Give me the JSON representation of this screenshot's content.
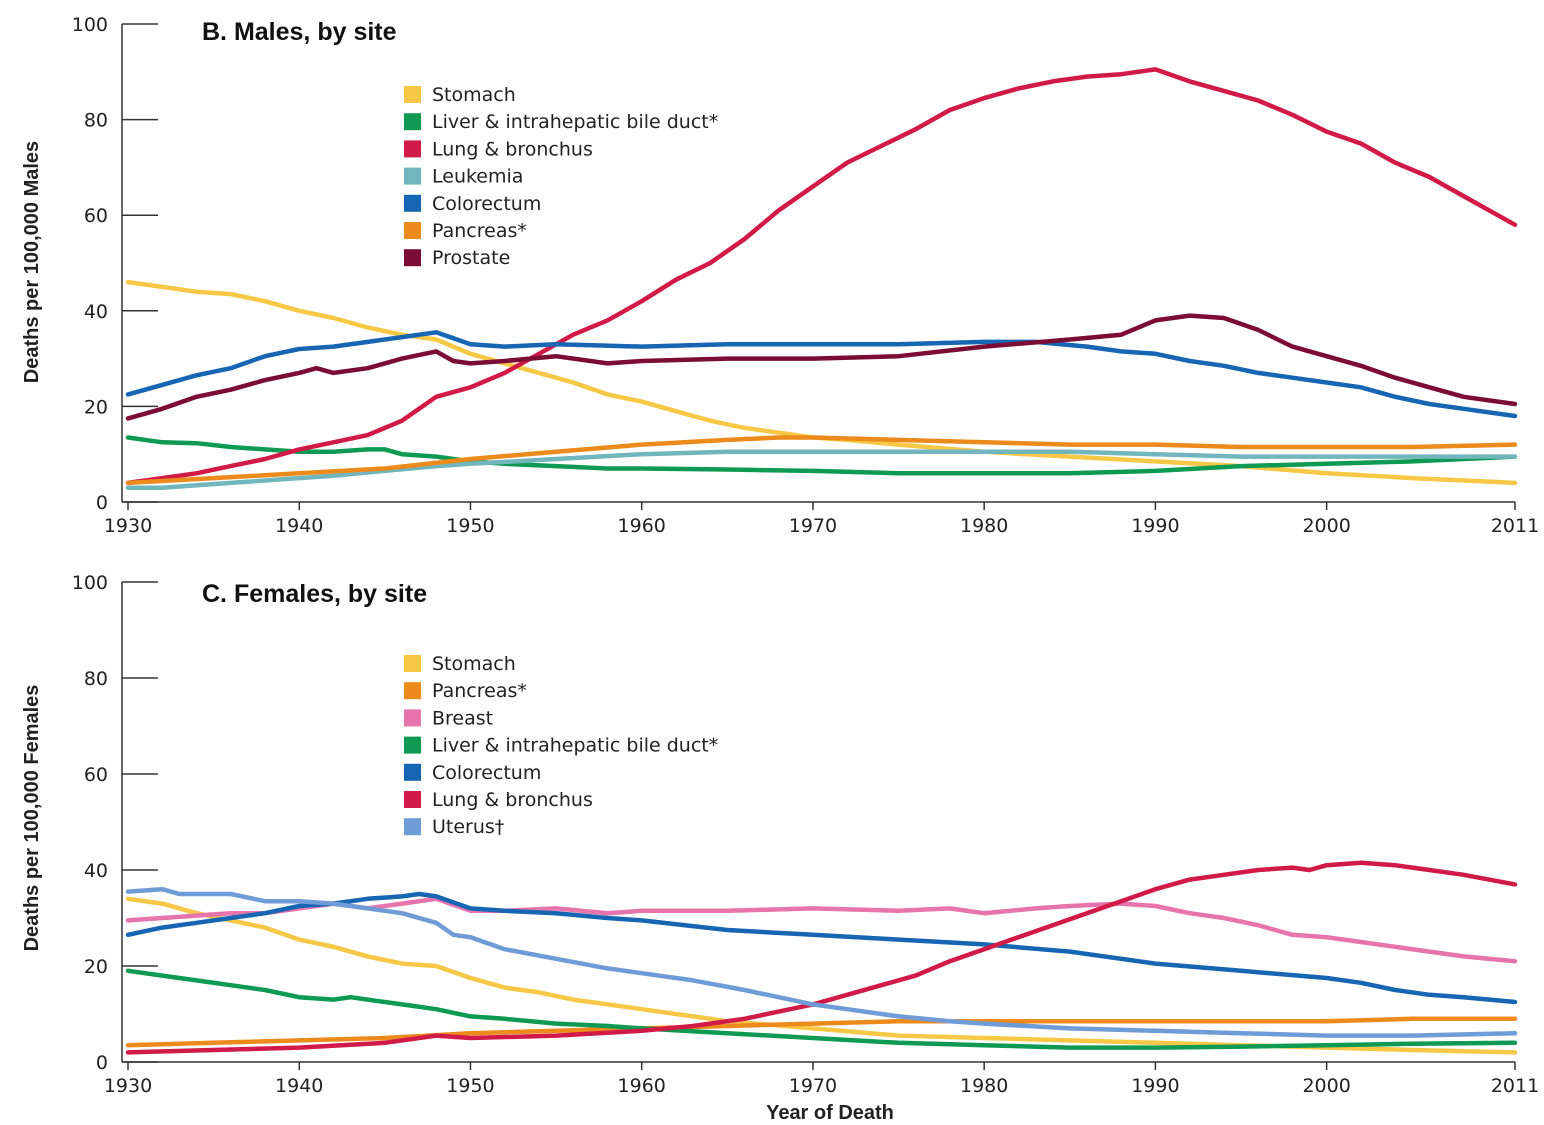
{
  "xlabel": "Year of Death",
  "chart_data": [
    {
      "type": "line",
      "title": "B. Males, by site",
      "ylabel": "Deaths per 100,000 Males",
      "xlabel": "Year of Death",
      "xlim": [
        1930,
        2011
      ],
      "ylim": [
        0,
        100
      ],
      "xticks": [
        "1930",
        "1940",
        "1950",
        "1960",
        "1970",
        "1980",
        "1990",
        "2000",
        "2011"
      ],
      "yticks": [
        "0",
        "20",
        "40",
        "60",
        "80",
        "100"
      ],
      "legend_position": "upper-left",
      "series": [
        {
          "name": "Stomach",
          "color": "#f6c846",
          "x": [
            1930,
            1932,
            1934,
            1936,
            1938,
            1940,
            1942,
            1944,
            1946,
            1948,
            1950,
            1952,
            1954,
            1956,
            1958,
            1960,
            1962,
            1964,
            1966,
            1968,
            1970,
            1972,
            1975,
            1980,
            1985,
            1990,
            1995,
            2000,
            2005,
            2011
          ],
          "y": [
            46,
            45,
            44,
            43.5,
            42,
            40,
            38.5,
            36.5,
            35,
            34,
            31,
            29,
            27,
            25,
            22.5,
            21,
            19,
            17,
            15.5,
            14.5,
            13.5,
            13,
            12,
            10.5,
            9.5,
            8.5,
            7.5,
            6,
            5,
            4
          ]
        },
        {
          "name": "Liver & intrahepatic bile duct*",
          "color": "#0e9a52",
          "x": [
            1930,
            1932,
            1934,
            1936,
            1938,
            1940,
            1942,
            1944,
            1945,
            1946,
            1948,
            1950,
            1952,
            1955,
            1958,
            1960,
            1965,
            1970,
            1975,
            1980,
            1985,
            1990,
            1995,
            2000,
            2005,
            2011
          ],
          "y": [
            13.5,
            12.5,
            12.3,
            11.5,
            11,
            10.5,
            10.5,
            11,
            11,
            10,
            9.5,
            8.5,
            8,
            7.5,
            7,
            7,
            6.8,
            6.5,
            6,
            6,
            6,
            6.5,
            7.5,
            8,
            8.5,
            9.5
          ]
        },
        {
          "name": "Lung & bronchus",
          "color": "#d11a48",
          "x": [
            1930,
            1932,
            1934,
            1936,
            1938,
            1940,
            1942,
            1944,
            1946,
            1948,
            1950,
            1952,
            1954,
            1956,
            1958,
            1960,
            1962,
            1964,
            1966,
            1968,
            1970,
            1972,
            1974,
            1976,
            1978,
            1980,
            1982,
            1984,
            1986,
            1988,
            1990,
            1992,
            1994,
            1996,
            1998,
            2000,
            2002,
            2004,
            2006,
            2008,
            2011
          ],
          "y": [
            4,
            5,
            6,
            7.5,
            9,
            11,
            12.5,
            14,
            17,
            22,
            24,
            27,
            31,
            35,
            38,
            42,
            46.5,
            50,
            55,
            61,
            66,
            71,
            74.5,
            78,
            82,
            84.5,
            86.5,
            88,
            89,
            89.5,
            90.5,
            88,
            86,
            84,
            81,
            77.5,
            75,
            71,
            68,
            64,
            58
          ]
        },
        {
          "name": "Leukemia",
          "color": "#71b6bc",
          "x": [
            1930,
            1932,
            1934,
            1936,
            1938,
            1940,
            1942,
            1945,
            1948,
            1950,
            1955,
            1960,
            1965,
            1968,
            1970,
            1975,
            1980,
            1985,
            1990,
            1995,
            2000,
            2005,
            2011
          ],
          "y": [
            3,
            3,
            3.5,
            4,
            4.5,
            5,
            5.5,
            6.5,
            7.5,
            8,
            9,
            10,
            10.5,
            10.5,
            10.5,
            10.5,
            10.5,
            10.5,
            10,
            9.5,
            9.5,
            9.5,
            9.5
          ]
        },
        {
          "name": "Colorectum",
          "color": "#1766b3",
          "x": [
            1930,
            1932,
            1934,
            1936,
            1938,
            1940,
            1942,
            1944,
            1946,
            1948,
            1950,
            1952,
            1955,
            1960,
            1965,
            1970,
            1975,
            1980,
            1983,
            1986,
            1988,
            1990,
            1992,
            1994,
            1996,
            1998,
            2000,
            2002,
            2004,
            2006,
            2008,
            2011
          ],
          "y": [
            22.5,
            24.5,
            26.5,
            28,
            30.5,
            32,
            32.5,
            33.5,
            34.5,
            35.5,
            33,
            32.5,
            33,
            32.5,
            33,
            33,
            33,
            33.5,
            33.5,
            32.5,
            31.5,
            31,
            29.5,
            28.5,
            27,
            26,
            25,
            24,
            22,
            20.5,
            19.5,
            18
          ]
        },
        {
          "name": "Pancreas*",
          "color": "#ec8a1c",
          "x": [
            1930,
            1935,
            1940,
            1945,
            1950,
            1955,
            1960,
            1965,
            1968,
            1970,
            1975,
            1980,
            1985,
            1990,
            1995,
            2000,
            2005,
            2011
          ],
          "y": [
            4,
            5,
            6,
            7,
            9,
            10.5,
            12,
            13,
            13.5,
            13.5,
            13,
            12.5,
            12,
            12,
            11.5,
            11.5,
            11.5,
            12
          ]
        },
        {
          "name": "Prostate",
          "color": "#7b0c33",
          "x": [
            1930,
            1932,
            1934,
            1936,
            1938,
            1940,
            1941,
            1942,
            1944,
            1946,
            1948,
            1949,
            1950,
            1952,
            1955,
            1958,
            1960,
            1965,
            1970,
            1975,
            1980,
            1985,
            1988,
            1990,
            1992,
            1994,
            1996,
            1998,
            2000,
            2002,
            2004,
            2006,
            2008,
            2011
          ],
          "y": [
            17.5,
            19.5,
            22,
            23.5,
            25.5,
            27,
            28,
            27,
            28,
            30,
            31.5,
            29.5,
            29,
            29.5,
            30.5,
            29,
            29.5,
            30,
            30,
            30.5,
            32.5,
            34,
            35,
            38,
            39,
            38.5,
            36,
            32.5,
            30.5,
            28.5,
            26,
            24,
            22,
            20.5
          ]
        }
      ]
    },
    {
      "type": "line",
      "title": "C. Females, by site",
      "ylabel": "Deaths per 100,000 Females",
      "xlabel": "Year of Death",
      "xlim": [
        1930,
        2011
      ],
      "ylim": [
        0,
        100
      ],
      "xticks": [
        "1930",
        "1940",
        "1950",
        "1960",
        "1970",
        "1980",
        "1990",
        "2000",
        "2011"
      ],
      "yticks": [
        "0",
        "20",
        "40",
        "60",
        "80",
        "100"
      ],
      "legend_position": "upper-left",
      "series": [
        {
          "name": "Stomach",
          "color": "#f6c846",
          "x": [
            1930,
            1932,
            1934,
            1936,
            1938,
            1940,
            1942,
            1944,
            1946,
            1948,
            1950,
            1952,
            1954,
            1956,
            1958,
            1960,
            1962,
            1965,
            1970,
            1975,
            1980,
            1985,
            1990,
            1995,
            2000,
            2005,
            2011
          ],
          "y": [
            34,
            33,
            31,
            29.5,
            28,
            25.5,
            24,
            22,
            20.5,
            20,
            17.5,
            15.5,
            14.5,
            13,
            12,
            11,
            10,
            8.5,
            7,
            5.5,
            5,
            4.5,
            4,
            3.5,
            3,
            2.5,
            2
          ]
        },
        {
          "name": "Pancreas*",
          "color": "#ec8a1c",
          "x": [
            1930,
            1935,
            1940,
            1945,
            1950,
            1955,
            1960,
            1965,
            1970,
            1975,
            1980,
            1985,
            1990,
            1995,
            2000,
            2005,
            2011
          ],
          "y": [
            3.5,
            4,
            4.5,
            5,
            6,
            6.5,
            7,
            7.5,
            8,
            8.5,
            8.5,
            8.5,
            8.5,
            8.5,
            8.5,
            9,
            9
          ]
        },
        {
          "name": "Breast",
          "color": "#e774ad",
          "x": [
            1930,
            1932,
            1934,
            1936,
            1938,
            1940,
            1942,
            1944,
            1946,
            1948,
            1950,
            1952,
            1955,
            1958,
            1960,
            1965,
            1970,
            1975,
            1978,
            1980,
            1983,
            1985,
            1988,
            1990,
            1992,
            1994,
            1996,
            1998,
            2000,
            2002,
            2004,
            2006,
            2008,
            2011
          ],
          "y": [
            29.5,
            30,
            30.5,
            31,
            31,
            32,
            33,
            32,
            33,
            34,
            31.5,
            31.5,
            32,
            31,
            31.5,
            31.5,
            32,
            31.5,
            32,
            31,
            32,
            32.5,
            33,
            32.5,
            31,
            30,
            28.5,
            26.5,
            26,
            25,
            24,
            23,
            22,
            21
          ]
        },
        {
          "name": "Liver & intrahepatic bile duct*",
          "color": "#0e9a52",
          "x": [
            1930,
            1932,
            1934,
            1936,
            1938,
            1940,
            1942,
            1943,
            1944,
            1946,
            1948,
            1950,
            1952,
            1955,
            1958,
            1960,
            1965,
            1970,
            1975,
            1980,
            1985,
            1990,
            1995,
            2000,
            2005,
            2011
          ],
          "y": [
            19,
            18,
            17,
            16,
            15,
            13.5,
            13,
            13.5,
            13,
            12,
            11,
            9.5,
            9,
            8,
            7.5,
            7,
            6,
            5,
            4,
            3.5,
            3,
            3,
            3.2,
            3.5,
            3.8,
            4
          ]
        },
        {
          "name": "Colorectum",
          "color": "#1766b3",
          "x": [
            1930,
            1932,
            1934,
            1936,
            1938,
            1940,
            1942,
            1944,
            1946,
            1947,
            1948,
            1950,
            1952,
            1955,
            1958,
            1960,
            1965,
            1970,
            1975,
            1980,
            1985,
            1990,
            1995,
            2000,
            2002,
            2004,
            2006,
            2008,
            2011
          ],
          "y": [
            26.5,
            28,
            29,
            30,
            31,
            32.5,
            33,
            34,
            34.5,
            35,
            34.5,
            32,
            31.5,
            31,
            30,
            29.5,
            27.5,
            26.5,
            25.5,
            24.5,
            23,
            20.5,
            19,
            17.5,
            16.5,
            15,
            14,
            13.5,
            12.5
          ]
        },
        {
          "name": "Lung & bronchus",
          "color": "#d11a48",
          "x": [
            1930,
            1935,
            1940,
            1945,
            1948,
            1950,
            1955,
            1960,
            1963,
            1966,
            1968,
            1970,
            1972,
            1974,
            1976,
            1978,
            1980,
            1982,
            1984,
            1986,
            1988,
            1990,
            1992,
            1994,
            1996,
            1998,
            1999,
            2000,
            2002,
            2004,
            2006,
            2008,
            2011
          ],
          "y": [
            2,
            2.5,
            3,
            4,
            5.5,
            5,
            5.5,
            6.5,
            7.5,
            9,
            10.5,
            12,
            14,
            16,
            18,
            21,
            23.5,
            26,
            28.5,
            31,
            33.5,
            36,
            38,
            39,
            40,
            40.5,
            40,
            41,
            41.5,
            41,
            40,
            39,
            37
          ]
        },
        {
          "name": "Uterus†",
          "color": "#6f9bd7",
          "x": [
            1930,
            1932,
            1933,
            1936,
            1938,
            1940,
            1942,
            1944,
            1946,
            1948,
            1949,
            1950,
            1952,
            1955,
            1958,
            1960,
            1963,
            1966,
            1968,
            1970,
            1972,
            1975,
            1978,
            1980,
            1985,
            1990,
            1995,
            2000,
            2005,
            2011
          ],
          "y": [
            35.5,
            36,
            35,
            35,
            33.5,
            33.5,
            33,
            32,
            31,
            29,
            26.5,
            26,
            23.5,
            21.5,
            19.5,
            18.5,
            17,
            15,
            13.5,
            12,
            11,
            9.5,
            8.5,
            8,
            7,
            6.5,
            6,
            5.5,
            5.5,
            6
          ]
        }
      ]
    }
  ]
}
